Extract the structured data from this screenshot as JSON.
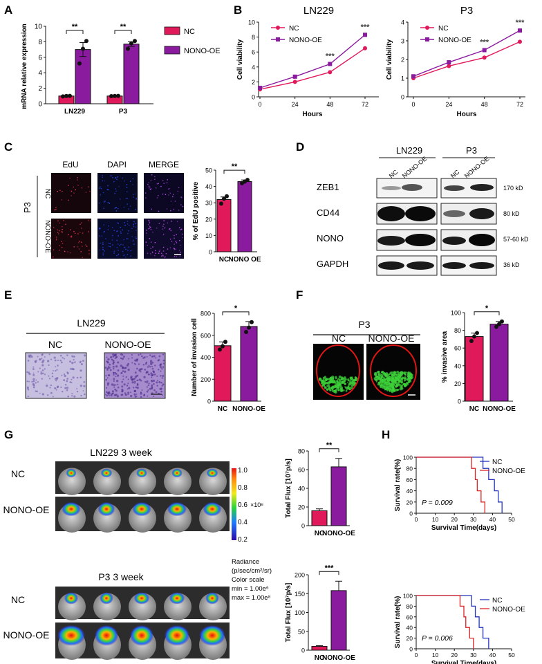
{
  "colors": {
    "nc": "#e0195a",
    "oe": "#8a1a9e",
    "black": "#111111",
    "kmNc": "#2233bb",
    "kmOe": "#dd2222",
    "gfp": "#3dd13a",
    "crystal": "#9a7fc4"
  },
  "panel_labels": {
    "A": "A",
    "B": "B",
    "C": "C",
    "D": "D",
    "E": "E",
    "F": "F",
    "G": "G",
    "H": "H"
  },
  "stars": {
    "two": "**",
    "three": "***",
    "one": "*"
  },
  "legend": {
    "nc": "NC",
    "oe": "NONO-OE"
  },
  "panelC": {
    "cols": [
      "EdU",
      "DAPI",
      "MERGE"
    ],
    "rows": [
      "NC",
      "NONO-OE"
    ],
    "cell_line": "P3"
  },
  "panelD": {
    "cell_lines": [
      "LN229",
      "P3"
    ],
    "lanes": [
      "NC",
      "NONO-OE"
    ],
    "proteins": [
      "ZEB1",
      "CD44",
      "NONO",
      "GAPDH"
    ],
    "sizes": [
      "170 kD",
      "80 kD",
      "57-60 kD",
      "36 kD"
    ]
  },
  "panelE": {
    "title": "LN229",
    "col_nc": "NC",
    "col_oe": "NONO-OE"
  },
  "panelF": {
    "title": "P3",
    "col_nc": "NC",
    "col_oe": "NONO-OE"
  },
  "panelG": {
    "title1": "LN229 3 week",
    "title2": "P3 3 week",
    "row_nc": "NC",
    "row_oe": "NONO-OE",
    "scale_ticks": [
      "1.0",
      "0.8",
      "0.6",
      "0.4",
      "0.2"
    ],
    "scale_exp": "×10⁸",
    "radiance_lines": [
      "Radiance",
      "(p/sec/cm²/sr)",
      "Color scale",
      "min = 1.00e⁶",
      "max = 1.00e⁸"
    ]
  },
  "chart_data": [
    {
      "id": "A",
      "type": "bar",
      "ylabel": "mRNA relative expression",
      "ylim": [
        0,
        10
      ],
      "yticks": [
        0,
        2,
        4,
        6,
        8,
        10
      ],
      "categories": [
        "LN229",
        "P3"
      ],
      "series": [
        {
          "name": "NC",
          "values": [
            1.0,
            1.0
          ],
          "err": [
            0.05,
            0.05
          ]
        },
        {
          "name": "NONO-OE",
          "values": [
            7.0,
            7.7
          ],
          "err": [
            0.9,
            0.3
          ]
        }
      ],
      "points": [
        [
          0.95,
          1.0,
          1.02
        ],
        [
          0.98,
          1.0,
          1.02
        ],
        [
          5.2,
          7.1,
          8.1
        ],
        [
          7.1,
          7.8,
          8.1
        ]
      ],
      "significance": [
        "**",
        "**"
      ]
    },
    {
      "id": "B1",
      "type": "line",
      "title": "LN229",
      "xlabel": "Hours",
      "ylabel": "Cell viability",
      "x": [
        0,
        24,
        48,
        72
      ],
      "xlim": [
        0,
        72
      ],
      "ylim": [
        0,
        10
      ],
      "yticks": [
        0,
        2,
        4,
        6,
        8,
        10
      ],
      "series": [
        {
          "name": "NC",
          "values": [
            1.0,
            2.0,
            3.3,
            6.5
          ]
        },
        {
          "name": "NONO-OE",
          "values": [
            1.2,
            2.7,
            4.4,
            8.3
          ]
        }
      ],
      "annotations": [
        {
          "x": 48,
          "text": "***"
        },
        {
          "x": 72,
          "text": "***"
        }
      ]
    },
    {
      "id": "B2",
      "type": "line",
      "title": "P3",
      "xlabel": "Hours",
      "ylabel": "Cell viability",
      "x": [
        0,
        24,
        48,
        72
      ],
      "xlim": [
        0,
        72
      ],
      "ylim": [
        0,
        4
      ],
      "yticks": [
        0,
        1,
        2,
        3,
        4
      ],
      "series": [
        {
          "name": "NC",
          "values": [
            1.0,
            1.65,
            2.1,
            2.95
          ]
        },
        {
          "name": "NONO-OE",
          "values": [
            1.1,
            1.85,
            2.5,
            3.55
          ]
        }
      ],
      "annotations": [
        {
          "x": 48,
          "text": "***"
        },
        {
          "x": 72,
          "text": "***"
        }
      ]
    },
    {
      "id": "C",
      "type": "bar",
      "ylabel": "% of EdU positive",
      "ylim": [
        0,
        50
      ],
      "yticks": [
        0,
        10,
        20,
        30,
        40,
        50
      ],
      "categories": [
        "NC",
        "NONO OE"
      ],
      "values": [
        32,
        43
      ],
      "err": [
        1.6,
        1.0
      ],
      "points": [
        [
          29.5,
          32.5,
          34
        ],
        [
          42,
          43,
          44
        ]
      ],
      "significance": "**"
    },
    {
      "id": "E",
      "type": "bar",
      "ylabel": "Number of invasion cell",
      "ylim": [
        0,
        800
      ],
      "yticks": [
        0,
        200,
        400,
        600,
        800
      ],
      "categories": [
        "NC",
        "NONO-OE"
      ],
      "values": [
        505,
        680
      ],
      "err": [
        35,
        45
      ],
      "points": [
        [
          470,
          500,
          540
        ],
        [
          630,
          670,
          720
        ]
      ],
      "significance": "*"
    },
    {
      "id": "F",
      "type": "bar",
      "ylabel": "% invasive area",
      "ylim": [
        0,
        100
      ],
      "yticks": [
        0,
        20,
        40,
        60,
        80,
        100
      ],
      "categories": [
        "NC",
        "NONO-OE"
      ],
      "values": [
        73,
        87
      ],
      "err": [
        4,
        3
      ],
      "points": [
        [
          68,
          73,
          77
        ],
        [
          84,
          87,
          90
        ]
      ],
      "significance": "*"
    },
    {
      "id": "G1",
      "type": "bar",
      "ylabel": "Total Flux [10⁷p/s]",
      "ylim": [
        0,
        80
      ],
      "yticks": [
        0,
        20,
        40,
        60,
        80
      ],
      "categories": [
        "NC",
        "NONO-OE"
      ],
      "values": [
        16,
        63
      ],
      "err": [
        2,
        9
      ],
      "significance": "**"
    },
    {
      "id": "G2",
      "type": "bar",
      "ylabel": "Total Flux [10⁷p/s]",
      "ylim": [
        0,
        200
      ],
      "yticks": [
        0,
        50,
        100,
        150,
        200
      ],
      "categories": [
        "NC",
        "NONO-OE"
      ],
      "values": [
        10,
        158
      ],
      "err": [
        2,
        25
      ],
      "significance": "***"
    },
    {
      "id": "H1",
      "type": "line",
      "ylabel": "Survival rate(%)",
      "xlabel": "Survival Time(days)",
      "xlim": [
        0,
        50
      ],
      "ylim": [
        0,
        100
      ],
      "xticks": [
        0,
        10,
        20,
        30,
        40,
        50
      ],
      "yticks": [
        0,
        20,
        40,
        60,
        80,
        100
      ],
      "pvalue": "P = 0.009",
      "series": [
        {
          "name": "NC",
          "steps": [
            [
              0,
              100
            ],
            [
              35,
              100
            ],
            [
              35,
              80
            ],
            [
              38,
              80
            ],
            [
              38,
              60
            ],
            [
              41,
              60
            ],
            [
              41,
              40
            ],
            [
              43,
              40
            ],
            [
              43,
              20
            ],
            [
              45,
              20
            ],
            [
              45,
              0
            ]
          ]
        },
        {
          "name": "NONO-OE",
          "steps": [
            [
              0,
              100
            ],
            [
              29,
              100
            ],
            [
              29,
              80
            ],
            [
              31,
              80
            ],
            [
              31,
              60
            ],
            [
              32,
              60
            ],
            [
              32,
              40
            ],
            [
              34,
              40
            ],
            [
              34,
              20
            ],
            [
              36,
              20
            ],
            [
              36,
              0
            ]
          ]
        }
      ]
    },
    {
      "id": "H2",
      "type": "line",
      "ylabel": "Survival rate(%)",
      "xlabel": "Survival Time(days)",
      "xlim": [
        0,
        50
      ],
      "ylim": [
        0,
        100
      ],
      "xticks": [
        0,
        10,
        20,
        30,
        40,
        50
      ],
      "yticks": [
        0,
        20,
        40,
        60,
        80,
        100
      ],
      "pvalue": "P = 0.006",
      "series": [
        {
          "name": "NC",
          "steps": [
            [
              0,
              100
            ],
            [
              29,
              100
            ],
            [
              29,
              80
            ],
            [
              31,
              80
            ],
            [
              31,
              60
            ],
            [
              33,
              60
            ],
            [
              33,
              40
            ],
            [
              35,
              40
            ],
            [
              35,
              20
            ],
            [
              38,
              20
            ],
            [
              38,
              0
            ]
          ]
        },
        {
          "name": "NONO-OE",
          "steps": [
            [
              0,
              100
            ],
            [
              23,
              100
            ],
            [
              23,
              80
            ],
            [
              25,
              80
            ],
            [
              25,
              60
            ],
            [
              26,
              60
            ],
            [
              26,
              40
            ],
            [
              28,
              40
            ],
            [
              28,
              20
            ],
            [
              30,
              20
            ],
            [
              30,
              0
            ]
          ]
        }
      ]
    }
  ]
}
